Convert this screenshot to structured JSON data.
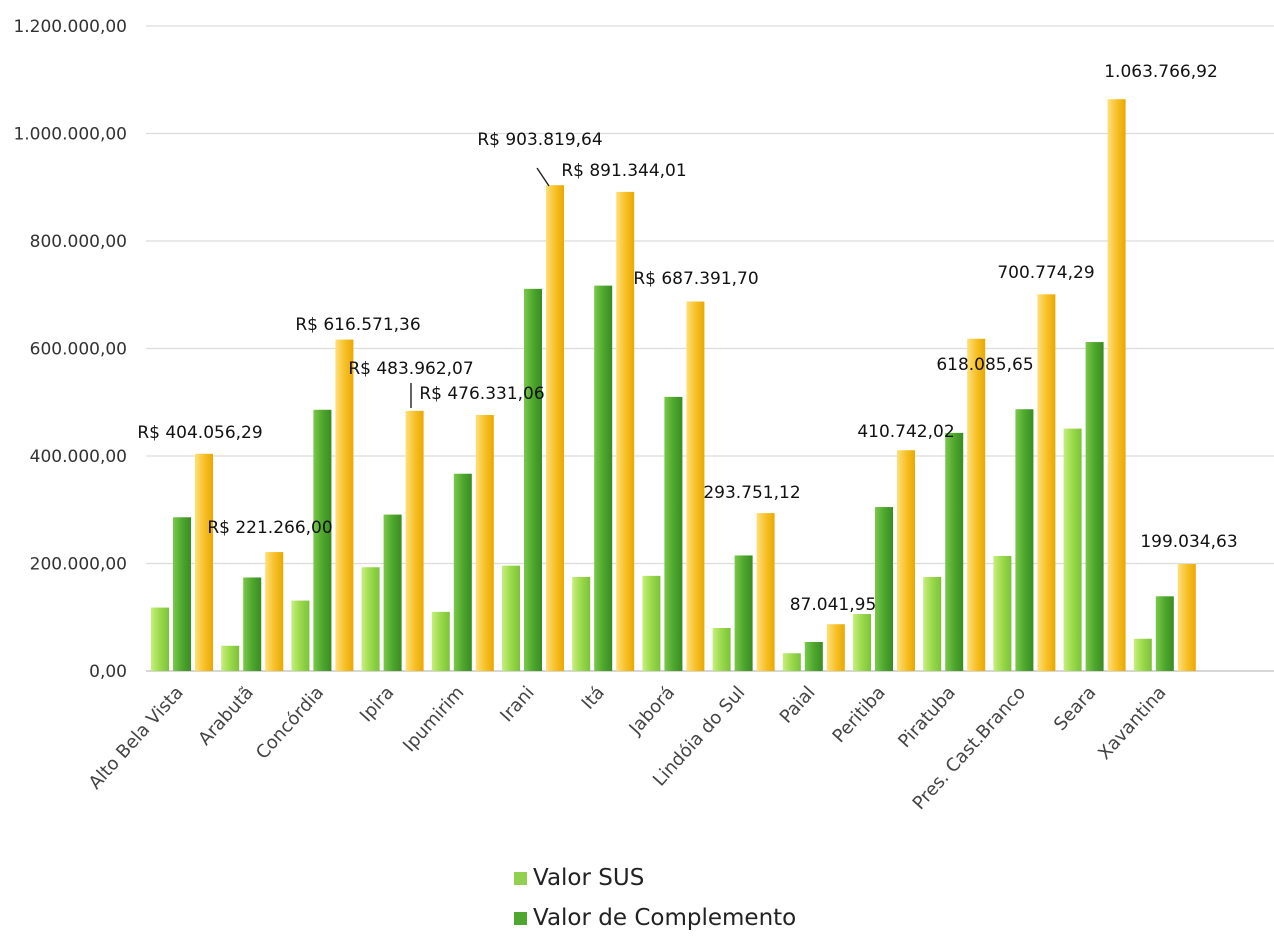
{
  "chart_data": {
    "type": "bar",
    "categories": [
      "Alto Bela Vista",
      "Arabutã",
      "Concórdia",
      "Ipira",
      "Ipumirim",
      "Irani",
      "Itá",
      "Jaborá",
      "Lindóia do Sul",
      "Paial",
      "Peritiba",
      "Piratuba",
      "Pres. Cast.Branco",
      "Seara",
      "Xavantina"
    ],
    "series": [
      {
        "name": "Valor SUS",
        "color": "#92d050",
        "values": [
          118000,
          47000,
          131000,
          193000,
          110000,
          196000,
          175000,
          177000,
          80000,
          33000,
          106000,
          175000,
          214000,
          451000,
          60000
        ]
      },
      {
        "name": "Valor de Complemento",
        "color": "#4ea72e",
        "values": [
          286000,
          174000,
          486000,
          291000,
          367000,
          711000,
          717000,
          510000,
          215000,
          54000,
          305000,
          443000,
          487000,
          612000,
          139000
        ]
      },
      {
        "color": "#f5b800",
        "values": [
          404056.29,
          221266.0,
          616571.36,
          483962.07,
          476331.06,
          903819.64,
          891344.01,
          687391.7,
          293751.12,
          87041.95,
          410742.02,
          618085.65,
          700774.29,
          1063766.92,
          199034.63
        ]
      }
    ],
    "data_labels": [
      "R$ 404.056,29",
      "R$ 221.266,00",
      "R$ 616.571,36",
      "R$ 483.962,07",
      "R$ 476.331,06",
      "R$ 903.819,64",
      "R$ 891.344,01",
      "R$ 687.391,70",
      "293.751,12",
      "87.041,95",
      "410.742,02",
      "618.085,65",
      "700.774,29",
      "1.063.766,92",
      "199.034,63"
    ],
    "y_ticks": [
      "0,00",
      "200.000,00",
      "400.000,00",
      "600.000,00",
      "800.000,00",
      "1.000.000,00",
      "1.200.000,00"
    ],
    "ylim": [
      0,
      1200000
    ],
    "grid": true,
    "legend_position": "bottom",
    "legend": [
      "Valor SUS",
      "Valor de Complemento"
    ]
  }
}
